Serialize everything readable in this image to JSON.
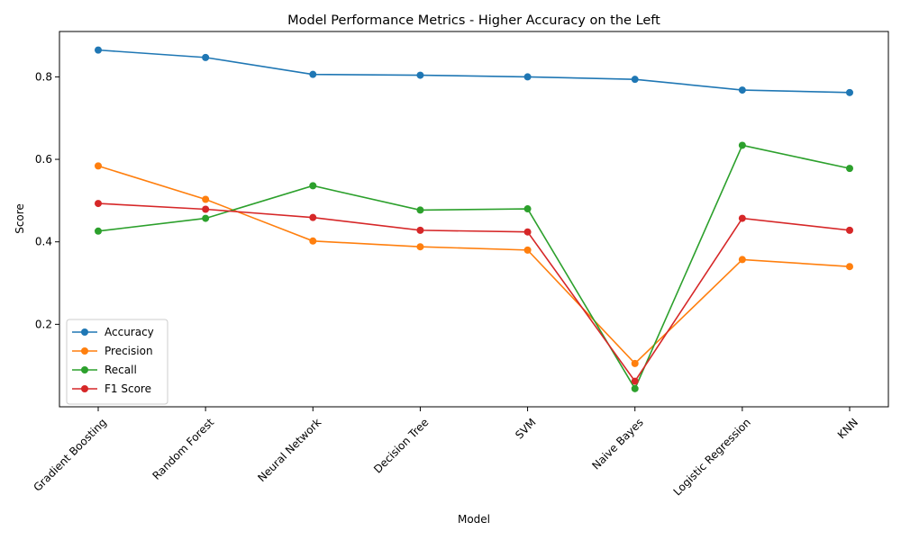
{
  "chart_data": {
    "type": "line",
    "title": "Model Performance Metrics - Higher Accuracy on the Left",
    "xlabel": "Model",
    "ylabel": "Score",
    "categories": [
      "Gradient Boosting",
      "Random Forest",
      "Neural Network",
      "Decision Tree",
      "SVM",
      "Naive Bayes",
      "Logistic Regression",
      "KNN"
    ],
    "ylim": [
      0.0,
      0.91
    ],
    "yticks": [
      "0.2",
      "0.4",
      "0.6",
      "0.8"
    ],
    "grid": false,
    "legend_position": "lower-left",
    "series": [
      {
        "name": "Accuracy",
        "color": "#1f77b4",
        "values": [
          0.865,
          0.847,
          0.806,
          0.804,
          0.8,
          0.794,
          0.768,
          0.762
        ]
      },
      {
        "name": "Precision",
        "color": "#ff7f0e",
        "values": [
          0.584,
          0.503,
          0.402,
          0.388,
          0.38,
          0.105,
          0.357,
          0.34
        ]
      },
      {
        "name": "Recall",
        "color": "#2ca02c",
        "values": [
          0.426,
          0.457,
          0.536,
          0.477,
          0.48,
          0.044,
          0.634,
          0.578
        ]
      },
      {
        "name": "F1 Score",
        "color": "#d62728",
        "values": [
          0.493,
          0.479,
          0.459,
          0.428,
          0.424,
          0.062,
          0.457,
          0.428
        ]
      }
    ]
  }
}
